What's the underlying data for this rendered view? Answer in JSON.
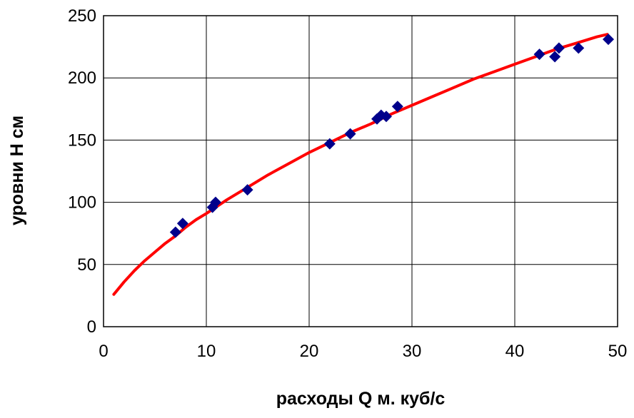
{
  "chart_data": {
    "type": "scatter",
    "title": "",
    "xlabel": "расходы Q м. куб/с",
    "ylabel": "уровни H см",
    "xlim": [
      0,
      50
    ],
    "ylim": [
      0,
      250
    ],
    "x_ticks": [
      "0",
      "10",
      "20",
      "30",
      "40",
      "50"
    ],
    "y_ticks": [
      "0",
      "50",
      "100",
      "150",
      "200",
      "250"
    ],
    "grid": true,
    "legend": "none",
    "series": [
      {
        "kind": "scatter",
        "marker": "diamond",
        "color": "#00008B",
        "points": [
          [
            7.0,
            76
          ],
          [
            7.7,
            83
          ],
          [
            10.6,
            96
          ],
          [
            10.9,
            100
          ],
          [
            14.0,
            110
          ],
          [
            22.0,
            147
          ],
          [
            24.0,
            155
          ],
          [
            26.6,
            167
          ],
          [
            27.0,
            170
          ],
          [
            27.5,
            169
          ],
          [
            28.6,
            177
          ],
          [
            42.4,
            219
          ],
          [
            43.9,
            217
          ],
          [
            44.3,
            224
          ],
          [
            46.2,
            224
          ],
          [
            49.1,
            231
          ]
        ]
      },
      {
        "kind": "line",
        "color": "#FF0000",
        "points": [
          [
            1.0,
            26
          ],
          [
            2.0,
            36
          ],
          [
            3.0,
            45
          ],
          [
            4.0,
            53
          ],
          [
            5.0,
            60
          ],
          [
            6.0,
            67
          ],
          [
            7.0,
            73
          ],
          [
            8.0,
            80
          ],
          [
            9.0,
            86
          ],
          [
            10.0,
            91
          ],
          [
            12.0,
            102
          ],
          [
            14.0,
            112
          ],
          [
            16.0,
            122
          ],
          [
            18.0,
            131
          ],
          [
            20.0,
            140
          ],
          [
            22.0,
            148
          ],
          [
            24.0,
            156
          ],
          [
            26.0,
            163
          ],
          [
            28.0,
            171
          ],
          [
            30.0,
            178
          ],
          [
            32.0,
            185
          ],
          [
            34.0,
            192
          ],
          [
            36.0,
            199
          ],
          [
            38.0,
            205
          ],
          [
            40.0,
            211
          ],
          [
            42.0,
            217
          ],
          [
            44.0,
            223
          ],
          [
            46.0,
            228
          ],
          [
            48.0,
            233
          ],
          [
            49.0,
            235
          ]
        ]
      }
    ]
  }
}
